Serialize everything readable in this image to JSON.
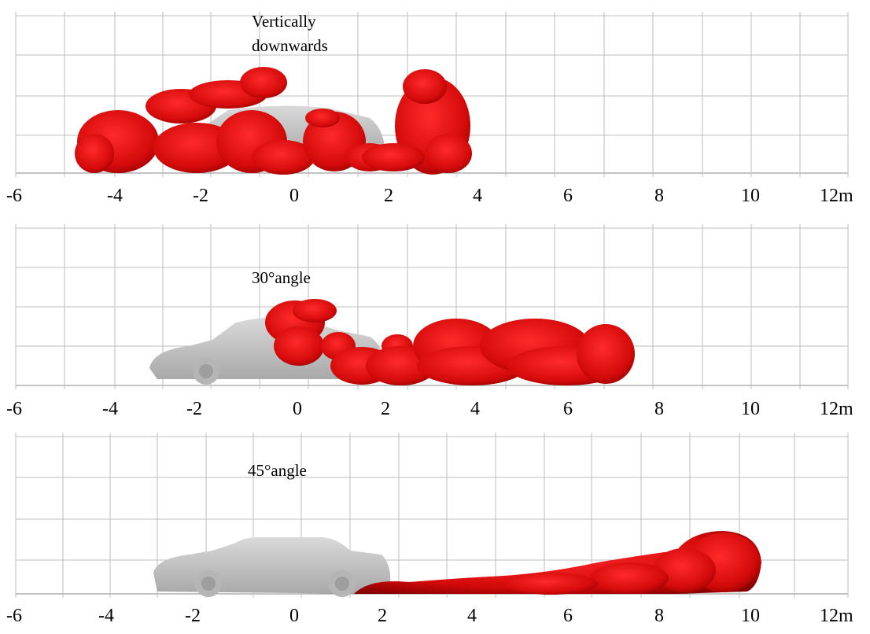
{
  "unit_suffix": "m",
  "tick_labels": [
    "-6",
    "-4",
    "-2",
    "0",
    "2",
    "4",
    "6",
    "8",
    "10",
    "12m"
  ],
  "panels": [
    {
      "label_lines": [
        "Vertically",
        "downwards"
      ]
    },
    {
      "label_lines": [
        "30°angle"
      ]
    },
    {
      "label_lines": [
        "45°angle"
      ]
    }
  ],
  "colors": {
    "spray": "#d40a0a",
    "spray_dark": "#8a0000",
    "car": "#c8c8c8",
    "car_dark": "#9a9a9a",
    "grid": "#bdbdbd"
  },
  "icons": [
    "car-silhouette",
    "spray-plume"
  ]
}
